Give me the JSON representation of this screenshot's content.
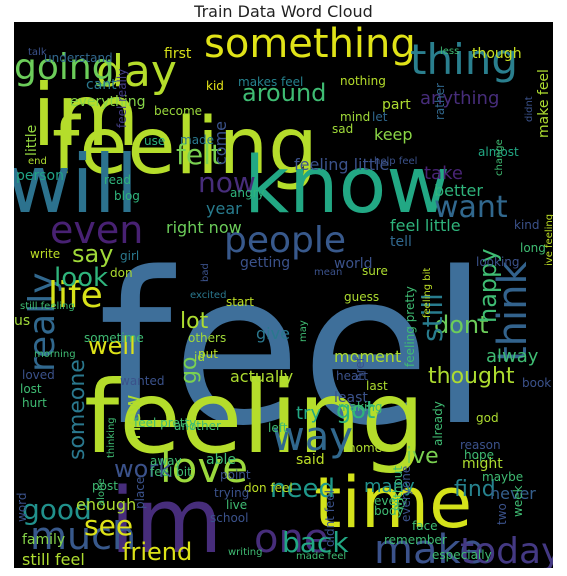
{
  "chart_data": {
    "type": "wordcloud",
    "title": "Train Data Word Cloud",
    "words": [
      {
        "text": "feel",
        "color": "#3e6f9a"
      },
      {
        "text": "feeling",
        "color": "#b5dd2b"
      },
      {
        "text": "feeling",
        "color": "#b5dd2b"
      },
      {
        "text": "im",
        "color": "#b5dd2b"
      },
      {
        "text": "im",
        "color": "#472d7b"
      },
      {
        "text": "know",
        "color": "#22a884"
      },
      {
        "text": "will",
        "color": "#2c728e"
      },
      {
        "text": "time",
        "color": "#d4e21a"
      },
      {
        "text": "something",
        "color": "#e0e318"
      },
      {
        "text": "thing",
        "color": "#2a7f8e"
      },
      {
        "text": "day",
        "color": "#b5dd2b"
      },
      {
        "text": "going",
        "color": "#6ccd5a"
      },
      {
        "text": "around",
        "color": "#3fbc73"
      },
      {
        "text": "people",
        "color": "#38598c"
      },
      {
        "text": "really",
        "color": "#31688e"
      },
      {
        "text": "life",
        "color": "#d8e219"
      },
      {
        "text": "think",
        "color": "#33638d"
      },
      {
        "text": "even",
        "color": "#482173"
      },
      {
        "text": "want",
        "color": "#31688e"
      },
      {
        "text": "love",
        "color": "#9bd93c"
      },
      {
        "text": "way",
        "color": "#31688e"
      },
      {
        "text": "one",
        "color": "#472d7b"
      },
      {
        "text": "much",
        "color": "#38598c"
      },
      {
        "text": "make",
        "color": "#3b528b"
      },
      {
        "text": "today",
        "color": "#443983"
      },
      {
        "text": "back",
        "color": "#22a884"
      },
      {
        "text": "friend",
        "color": "#dde318"
      },
      {
        "text": "need",
        "color": "#1f988b"
      },
      {
        "text": "felt",
        "color": "#7ad151"
      },
      {
        "text": "look",
        "color": "#2fb47c"
      },
      {
        "text": "say",
        "color": "#a0da39"
      },
      {
        "text": "now",
        "color": "#472d7b"
      },
      {
        "text": "dont",
        "color": "#6ccd5a"
      },
      {
        "text": "still",
        "color": "#287c8e"
      },
      {
        "text": "happy",
        "color": "#3fbc73"
      },
      {
        "text": "well",
        "color": "#dde318"
      },
      {
        "text": "lot",
        "color": "#addc30"
      },
      {
        "text": "go",
        "color": "#7ad151"
      },
      {
        "text": "good",
        "color": "#21918c"
      },
      {
        "text": "work",
        "color": "#3b528b"
      },
      {
        "text": "someone",
        "color": "#2a788e"
      },
      {
        "text": "got",
        "color": "#2fb47c"
      },
      {
        "text": "ive",
        "color": "#7ad151"
      },
      {
        "text": "thought",
        "color": "#addc30"
      },
      {
        "text": "find",
        "color": "#26828e"
      },
      {
        "text": "see",
        "color": "#dde318"
      },
      {
        "text": "anything",
        "color": "#472d7b"
      },
      {
        "text": "keep",
        "color": "#8bd646"
      },
      {
        "text": "take",
        "color": "#482475"
      },
      {
        "text": "better",
        "color": "#2fb47c"
      },
      {
        "text": "year",
        "color": "#287c8e"
      },
      {
        "text": "right now",
        "color": "#6ccd5a"
      },
      {
        "text": "feel little",
        "color": "#2fb47c"
      },
      {
        "text": "feeling little",
        "color": "#3b528b"
      },
      {
        "text": "everything",
        "color": "#86d549"
      },
      {
        "text": "little",
        "color": "#95d840"
      },
      {
        "text": "cant",
        "color": "#2a788e"
      },
      {
        "text": "part",
        "color": "#addc30"
      },
      {
        "text": "give",
        "color": "#2a788e"
      },
      {
        "text": "moment",
        "color": "#addc30"
      },
      {
        "text": "us",
        "color": "#a0da39"
      },
      {
        "text": "alway",
        "color": "#3fbc73"
      },
      {
        "text": "try",
        "color": "#22a884"
      },
      {
        "text": "new",
        "color": "#addc30"
      },
      {
        "text": "never",
        "color": "#355f8d"
      },
      {
        "text": "still feel",
        "color": "#addc30"
      },
      {
        "text": "actually",
        "color": "#addc30"
      },
      {
        "text": "said",
        "color": "#bddf26"
      },
      {
        "text": "many",
        "color": "#21918c"
      },
      {
        "text": "enough",
        "color": "#addc30"
      },
      {
        "text": "might",
        "color": "#addc30"
      },
      {
        "text": "tell",
        "color": "#31688e"
      },
      {
        "text": "getting",
        "color": "#3b528b"
      },
      {
        "text": "world",
        "color": "#3b528b"
      },
      {
        "text": "come",
        "color": "#3b528b"
      },
      {
        "text": "person",
        "color": "#20a386"
      },
      {
        "text": "able",
        "color": "#3fbc73"
      },
      {
        "text": "family",
        "color": "#86d549"
      },
      {
        "text": "though",
        "color": "#c8e020"
      },
      {
        "text": "first",
        "color": "#d8e219"
      },
      {
        "text": "talk",
        "color": "#3b528b"
      },
      {
        "text": "understand",
        "color": "#31688e"
      },
      {
        "text": "nothing",
        "color": "#b5dd2b"
      },
      {
        "text": "kid",
        "color": "#e5e419"
      },
      {
        "text": "makes feel",
        "color": "#26828e"
      },
      {
        "text": "become",
        "color": "#9bd93c"
      },
      {
        "text": "feel really",
        "color": "#433e85"
      },
      {
        "text": "make feel",
        "color": "#addc30"
      },
      {
        "text": "excited",
        "color": "#2a788e"
      },
      {
        "text": "made",
        "color": "#2a788e"
      },
      {
        "text": "use",
        "color": "#2fb47c"
      },
      {
        "text": "angry",
        "color": "#2fb47c"
      },
      {
        "text": "blog",
        "color": "#2fb47c"
      },
      {
        "text": "read",
        "color": "#2fb47c"
      },
      {
        "text": "end",
        "color": "#addc30"
      },
      {
        "text": "write",
        "color": "#bddf26"
      },
      {
        "text": "girl",
        "color": "#2a788e"
      },
      {
        "text": "don",
        "color": "#addc30"
      },
      {
        "text": "sad",
        "color": "#a0da39"
      },
      {
        "text": "mind",
        "color": "#a0da39"
      },
      {
        "text": "let",
        "color": "#31688e"
      },
      {
        "text": "almost",
        "color": "#22a884"
      },
      {
        "text": "kind",
        "color": "#3b528b"
      },
      {
        "text": "long",
        "color": "#3fbc73"
      },
      {
        "text": "sure",
        "color": "#addc30"
      },
      {
        "text": "guess",
        "color": "#addc30"
      },
      {
        "text": "start",
        "color": "#bddf26"
      },
      {
        "text": "mean",
        "color": "#3b528b"
      },
      {
        "text": "others",
        "color": "#a0da39"
      },
      {
        "text": "put",
        "color": "#bddf26"
      },
      {
        "text": "id",
        "color": "#a0da39"
      },
      {
        "text": "looking",
        "color": "#3b528b"
      },
      {
        "text": "rather",
        "color": "#31688e"
      },
      {
        "text": "heart",
        "color": "#3b528b"
      },
      {
        "text": "last",
        "color": "#addc30"
      },
      {
        "text": "least",
        "color": "#3b528b"
      },
      {
        "text": "left",
        "color": "#3fbc73"
      },
      {
        "text": "another",
        "color": "#3fbc73"
      },
      {
        "text": "making",
        "color": "#3fbc73"
      },
      {
        "text": "home",
        "color": "#addc30"
      },
      {
        "text": "god",
        "color": "#addc30"
      },
      {
        "text": "book",
        "color": "#3b528b"
      },
      {
        "text": "hope",
        "color": "#3fbc73"
      },
      {
        "text": "reason",
        "color": "#3b528b"
      },
      {
        "text": "maybe",
        "color": "#3fbc73"
      },
      {
        "text": "every",
        "color": "#3fbc73"
      },
      {
        "text": "body",
        "color": "#3fbc73"
      },
      {
        "text": "face",
        "color": "#3fbc73"
      },
      {
        "text": "remember",
        "color": "#3fbc73"
      },
      {
        "text": "week",
        "color": "#3fbc73"
      },
      {
        "text": "two",
        "color": "#3b528b"
      },
      {
        "text": "feel bit",
        "color": "#3fbc73"
      },
      {
        "text": "point",
        "color": "#3b528b"
      },
      {
        "text": "don feel",
        "color": "#bddf26"
      },
      {
        "text": "trying",
        "color": "#3b528b"
      },
      {
        "text": "live",
        "color": "#3fbc73"
      },
      {
        "text": "school",
        "color": "#3b528b"
      },
      {
        "text": "away",
        "color": "#3fbc73"
      },
      {
        "text": "post",
        "color": "#3fbc73"
      },
      {
        "text": "word",
        "color": "#3b528b"
      },
      {
        "text": "alone",
        "color": "#3fbc73"
      },
      {
        "text": "hurt",
        "color": "#3fbc73"
      },
      {
        "text": "lost",
        "color": "#3fbc73"
      },
      {
        "text": "loved",
        "color": "#3b528b"
      },
      {
        "text": "morning",
        "color": "#3fbc73"
      },
      {
        "text": "sometime",
        "color": "#3fbc73"
      },
      {
        "text": "wanted",
        "color": "#3b528b"
      },
      {
        "text": "may",
        "color": "#3fbc73"
      },
      {
        "text": "feeling pretty",
        "color": "#3fbc73"
      },
      {
        "text": "feeling bit",
        "color": "#bddf26"
      },
      {
        "text": "help feel",
        "color": "#3b528b"
      },
      {
        "text": "feel pretty",
        "color": "#3fbc73"
      },
      {
        "text": "thinking",
        "color": "#3fbc73"
      },
      {
        "text": "place",
        "color": "#3b528b"
      },
      {
        "text": "already",
        "color": "#3fbc73"
      },
      {
        "text": "didnt feel",
        "color": "#3b528b"
      },
      {
        "text": "especially",
        "color": "#3fbc73"
      },
      {
        "text": "writing",
        "color": "#3fbc73"
      },
      {
        "text": "made feel",
        "color": "#3fbc73"
      },
      {
        "text": "everyone",
        "color": "#3b528b"
      },
      {
        "text": "ive feeling",
        "color": "#bddf26"
      },
      {
        "text": "bad",
        "color": "#3b528b"
      },
      {
        "text": "still feeling",
        "color": "#3fbc73"
      },
      {
        "text": "without",
        "color": "#3fbc73"
      },
      {
        "text": "href",
        "color": "#3b528b"
      },
      {
        "text": "didnt",
        "color": "#3b528b"
      },
      {
        "text": "less",
        "color": "#3fbc73"
      },
      {
        "text": "change",
        "color": "#3fbc73"
      },
      {
        "text": "hand",
        "color": "#3b528b"
      },
      {
        "text": "share",
        "color": "#3b528b"
      },
      {
        "text": "went",
        "color": "#3fbc73"
      }
    ]
  }
}
